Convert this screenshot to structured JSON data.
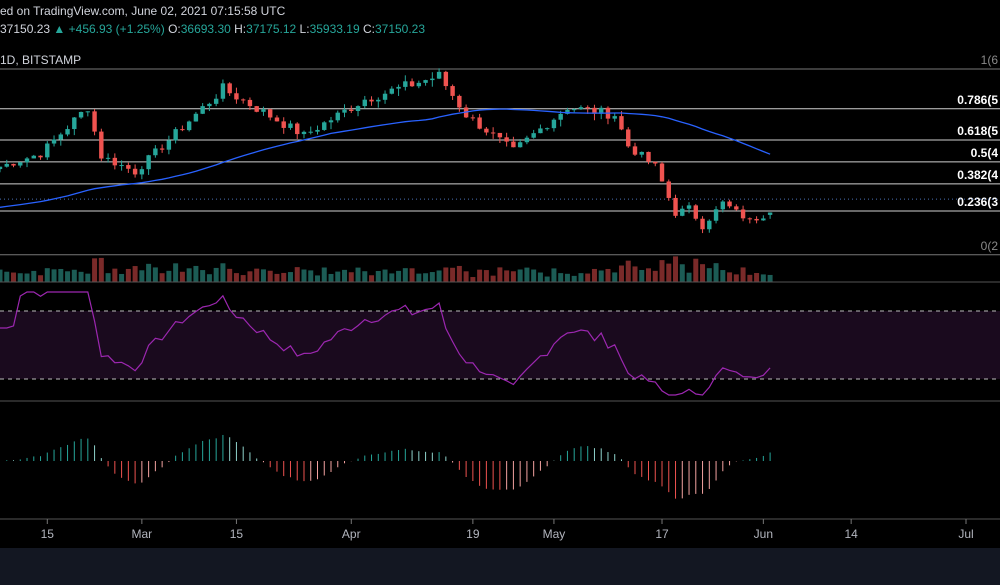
{
  "header": {
    "published": "ed on TradingView.com, June 02, 2021 07:15:58 UTC",
    "price": "37150.23",
    "change": "+456.93 (+1.25%)",
    "o_label": "O:",
    "o_value": "36693.30",
    "h_label": "H:",
    "h_value": "37175.12",
    "l_label": "L:",
    "l_value": "35933.19",
    "c_label": "C:",
    "c_value": "37150.23",
    "symbol": "1D, BITSTAMP"
  },
  "colors": {
    "up": "#26a69a",
    "down": "#ef5350",
    "ma": "#2962ff",
    "rsi": "#9c27b0",
    "background": "#000000"
  },
  "fib_levels": [
    {
      "label": "1(6",
      "level": 1
    },
    {
      "label": "0.786(5",
      "level": 0.786
    },
    {
      "label": "0.618(5",
      "level": 0.618
    },
    {
      "label": "0.5(4",
      "level": 0.5
    },
    {
      "label": "0.382(4",
      "level": 0.382
    },
    {
      "label": "0.236(3",
      "level": 0.236
    },
    {
      "label": "0(2",
      "level": 0
    }
  ],
  "x_ticks": [
    "15",
    "Mar",
    "15",
    "Apr",
    "19",
    "May",
    "17",
    "Jun",
    "14",
    "Jul"
  ],
  "chart_data": {
    "type": "candlestick",
    "x_start": "2021-02-08",
    "x_end": "2021-07-01",
    "y_range": [
      28000,
      65000
    ],
    "anchors": [
      {
        "date": "2021-02-08",
        "close": 46000
      },
      {
        "date": "2021-02-14",
        "close": 48500
      },
      {
        "date": "2021-02-21",
        "close": 57500
      },
      {
        "date": "2021-02-23",
        "close": 48000
      },
      {
        "date": "2021-02-28",
        "close": 45000
      },
      {
        "date": "2021-03-13",
        "close": 61000
      },
      {
        "date": "2021-03-25",
        "close": 52000
      },
      {
        "date": "2021-04-03",
        "close": 59000
      },
      {
        "date": "2021-04-14",
        "close": 63500
      },
      {
        "date": "2021-04-18",
        "close": 56000
      },
      {
        "date": "2021-04-25",
        "close": 49000
      },
      {
        "date": "2021-05-03",
        "close": 57500
      },
      {
        "date": "2021-05-10",
        "close": 56000
      },
      {
        "date": "2021-05-12",
        "close": 50000
      },
      {
        "date": "2021-05-16",
        "close": 46000
      },
      {
        "date": "2021-05-19",
        "close": 37000
      },
      {
        "date": "2021-05-21",
        "close": 38000
      },
      {
        "date": "2021-05-23",
        "close": 34500
      },
      {
        "date": "2021-05-26",
        "close": 39000
      },
      {
        "date": "2021-05-30",
        "close": 35500
      },
      {
        "date": "2021-06-02",
        "close": 37150
      }
    ],
    "last": {
      "open": 36693.3,
      "high": 37175.12,
      "low": 35933.19,
      "close": 37150.23
    }
  }
}
